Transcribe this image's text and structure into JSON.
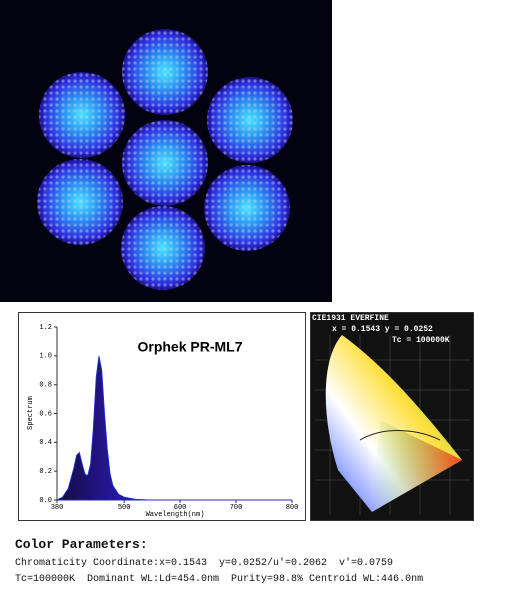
{
  "chart_data": {
    "type": "area",
    "title": "Orphek PR-ML7",
    "xlabel": "Wavelength(nm)",
    "ylabel": "Spectrum",
    "x": [
      380,
      390,
      400,
      410,
      415,
      420,
      425,
      430,
      435,
      440,
      445,
      450,
      455,
      460,
      465,
      470,
      475,
      480,
      490,
      500,
      520,
      550,
      800
    ],
    "values": [
      0,
      0.02,
      0.08,
      0.22,
      0.31,
      0.33,
      0.25,
      0.18,
      0.17,
      0.25,
      0.5,
      0.85,
      1.0,
      0.9,
      0.6,
      0.35,
      0.18,
      0.1,
      0.04,
      0.02,
      0.005,
      0,
      0
    ],
    "color": "#1a2fd0",
    "xlim": [
      380,
      800
    ],
    "xticks": [
      380,
      500,
      600,
      700,
      800
    ],
    "ylim": [
      0,
      1.2
    ],
    "yticks": [
      {
        "value": 0,
        "label": "0.0"
      },
      {
        "value": 0.2,
        "label": "0.2"
      },
      {
        "value": 0.4,
        "label": "0.4"
      },
      {
        "value": 0.6,
        "label": "0.6"
      },
      {
        "value": 0.8,
        "label": "0.8"
      },
      {
        "value": 1.0,
        "label": "1.0"
      },
      {
        "value": 1.2,
        "label": "1.2"
      }
    ]
  },
  "cie": {
    "title": "CIE1931 EVERFINE",
    "coords": "x = 0.1543 y = 0.0252",
    "tc": "Tc = 100000K"
  },
  "params": {
    "heading": "Color Parameters:",
    "lines": [
      "Chromaticity Coordinate:x=0.1543  y=0.0252/u'=0.2062  v'=0.0759",
      "Tc=100000K  Dominant WL:Ld=454.0nm  Purity=98.8% Centroid WL:446.0nm"
    ]
  }
}
